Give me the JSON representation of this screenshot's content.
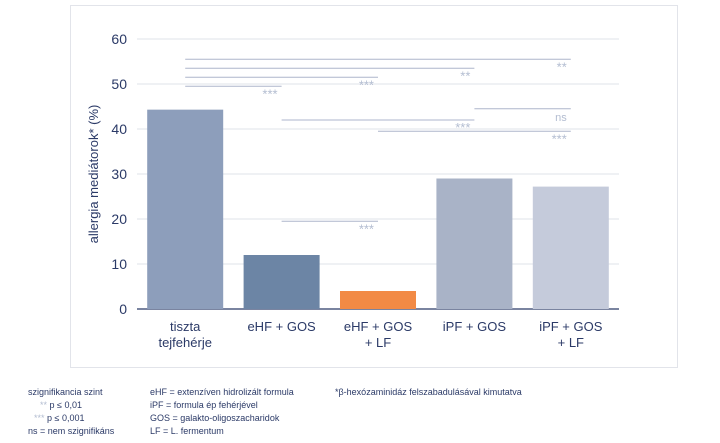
{
  "chart_data": {
    "type": "bar",
    "ylabel": "allergia mediátorok* (%)",
    "ylim": [
      0,
      60
    ],
    "yticks": [
      0,
      10,
      20,
      30,
      40,
      50,
      60
    ],
    "grid": true,
    "categories": [
      [
        "tiszta",
        "tejfehérje"
      ],
      [
        "eHF + GOS"
      ],
      [
        "eHF + GOS",
        "+ LF"
      ],
      [
        "iPF + GOS"
      ],
      [
        "iPF + GOS",
        "+ LF"
      ]
    ],
    "values": [
      44.3,
      12,
      4,
      29,
      27.2
    ],
    "bar_colors": [
      "#8d9ebb",
      "#6c85a5",
      "#f28a45",
      "#a9b3c7",
      "#c5cbdb"
    ],
    "significance": [
      {
        "from": 0,
        "to": 4,
        "y": 55.5,
        "label": "**"
      },
      {
        "from": 0,
        "to": 3,
        "y": 53.5,
        "label": "**"
      },
      {
        "from": 0,
        "to": 2,
        "y": 51.5,
        "label": "***"
      },
      {
        "from": 0,
        "to": 1,
        "y": 49.5,
        "label": "***"
      },
      {
        "from": 3,
        "to": 4,
        "y": 44.5,
        "label": "ns"
      },
      {
        "from": 1,
        "to": 3,
        "y": 42.0,
        "label": "***"
      },
      {
        "from": 2,
        "to": 4,
        "y": 39.5,
        "label": "***"
      },
      {
        "from": 1,
        "to": 2,
        "y": 19.5,
        "label": "***"
      }
    ]
  },
  "legend": {
    "col1": {
      "title": "szignifikancia szint",
      "rows": [
        {
          "stars": "**",
          "text": "p ≤ 0,01"
        },
        {
          "stars": "***",
          "text": "p ≤ 0,001"
        },
        {
          "stars": "",
          "text": "ns = nem szignifikáns"
        }
      ]
    },
    "col2": [
      "eHF = extenzíven hidrolizált formula",
      "iPF = formula ép fehérjével",
      "GOS = galakto-oligoszacharidok",
      "LF = L. fermentum"
    ],
    "col3": "*β-hexózaminidáz felszabadulásával kimutatva"
  },
  "colors": {
    "axis_text": "#2b3a67",
    "grid": "#dfe3ea",
    "sig_line": "#aeb6cc",
    "sig_label": "#b3bdd1"
  }
}
